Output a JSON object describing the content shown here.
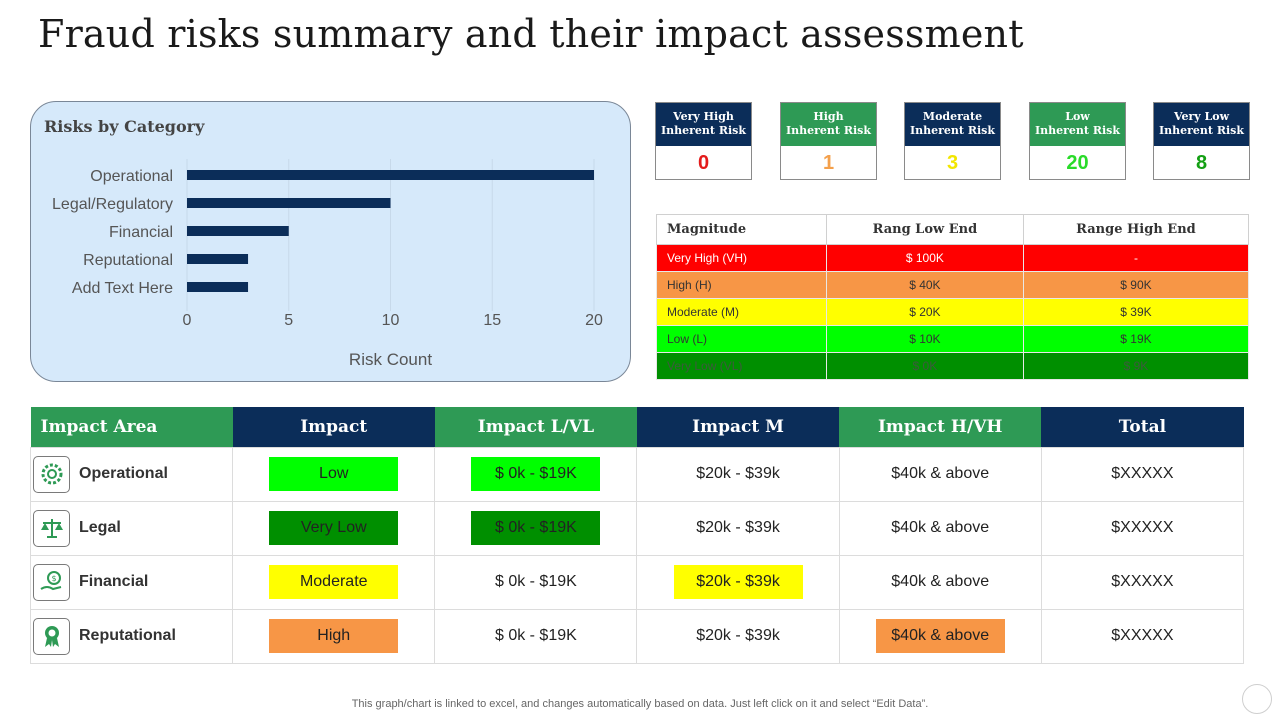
{
  "title": "Fraud risks summary and their impact assessment",
  "chart_data": {
    "type": "bar",
    "orientation": "horizontal",
    "title": "Risks by Category",
    "categories": [
      "Operational",
      "Legal/Regulatory",
      "Financial",
      "Reputational",
      "Add Text Here"
    ],
    "values": [
      20,
      10,
      5,
      3,
      3
    ],
    "xlabel": "Risk Count",
    "ylabel": "",
    "xlim": [
      0,
      20
    ],
    "xticks": [
      "0",
      "5",
      "10",
      "15",
      "20"
    ],
    "grid": true,
    "bar_color": "#0b2d59"
  },
  "kpis": [
    {
      "label_line1": "Very High",
      "label_line2": "Inherent Risk",
      "value": "0",
      "head_color": "#0b2d59",
      "value_color": "#e41b1b"
    },
    {
      "label_line1": "High",
      "label_line2": "Inherent Risk",
      "value": "1",
      "head_color": "#2e9a55",
      "value_color": "#f4a04b"
    },
    {
      "label_line1": "Moderate",
      "label_line2": "Inherent Risk",
      "value": "3",
      "head_color": "#0b2d59",
      "value_color": "#f2e600"
    },
    {
      "label_line1": "Low",
      "label_line2": "Inherent Risk",
      "value": "20",
      "head_color": "#2e9a55",
      "value_color": "#2adb2a"
    },
    {
      "label_line1": "Very Low",
      "label_line2": "Inherent Risk",
      "value": "8",
      "head_color": "#0b2d59",
      "value_color": "#14a014"
    }
  ],
  "magnitude": {
    "headers": [
      "Magnitude",
      "Rang Low End",
      "Range High End"
    ],
    "rows": [
      {
        "label": "Very High (VH)",
        "low": "$ 100K",
        "high": "-",
        "bg": "#ff0000",
        "fg": "#ffffff"
      },
      {
        "label": "High (H)",
        "low": "$ 40K",
        "high": "$ 90K",
        "bg": "#f79646",
        "fg": "#333333"
      },
      {
        "label": "Moderate  (M)",
        "low": "$ 20K",
        "high": "$ 39K",
        "bg": "#ffff00",
        "fg": "#333333"
      },
      {
        "label": "Low (L)",
        "low": "$ 10K",
        "high": "$ 19K",
        "bg": "#00ff00",
        "fg": "#333333"
      },
      {
        "label": "Very Low  (VL)",
        "low": "$ 0K",
        "high": "$ 9K",
        "bg": "#008f00",
        "fg": "#3d5a3d"
      }
    ]
  },
  "impact": {
    "headers": [
      "Impact Area",
      "Impact",
      "Impact L/VL",
      "Impact M",
      "Impact H/VH",
      "Total"
    ],
    "header_colors": [
      "#2e9a55",
      "#0b2d59",
      "#2e9a55",
      "#0b2d59",
      "#2e9a55",
      "#0b2d59"
    ],
    "rows": [
      {
        "area": "Operational",
        "icon": "gears-icon",
        "impact": "Low",
        "impact_bg": "#00ff00",
        "lvl": "$ 0k - $19K",
        "m": "$20k - $39k",
        "hvh": "$40k & above",
        "total": "$XXXXX",
        "highlight_col": 2,
        "highlight_bg": "#00ff00"
      },
      {
        "area": "Legal",
        "icon": "scales-icon",
        "impact": "Very Low",
        "impact_bg": "#008f00",
        "lvl": "$ 0k - $19K",
        "m": "$20k - $39k",
        "hvh": "$40k & above",
        "total": "$XXXXX",
        "highlight_col": 2,
        "highlight_bg": "#008f00"
      },
      {
        "area": "Financial",
        "icon": "money-hand-icon",
        "impact": "Moderate",
        "impact_bg": "#ffff00",
        "lvl": "$ 0k - $19K",
        "m": "$20k - $39k",
        "hvh": "$40k & above",
        "total": "$XXXXX",
        "highlight_col": 3,
        "highlight_bg": "#ffff00"
      },
      {
        "area": "Reputational",
        "icon": "award-badge-icon",
        "impact": "High",
        "impact_bg": "#f79646",
        "lvl": "$ 0k - $19K",
        "m": "$20k - $39k",
        "hvh": "$40k & above",
        "total": "$XXXXX",
        "highlight_col": 4,
        "highlight_bg": "#f79646"
      }
    ]
  },
  "footnote": "This graph/chart is linked to excel,  and changes automatically based on data. Just left click on it and select “Edit Data”."
}
